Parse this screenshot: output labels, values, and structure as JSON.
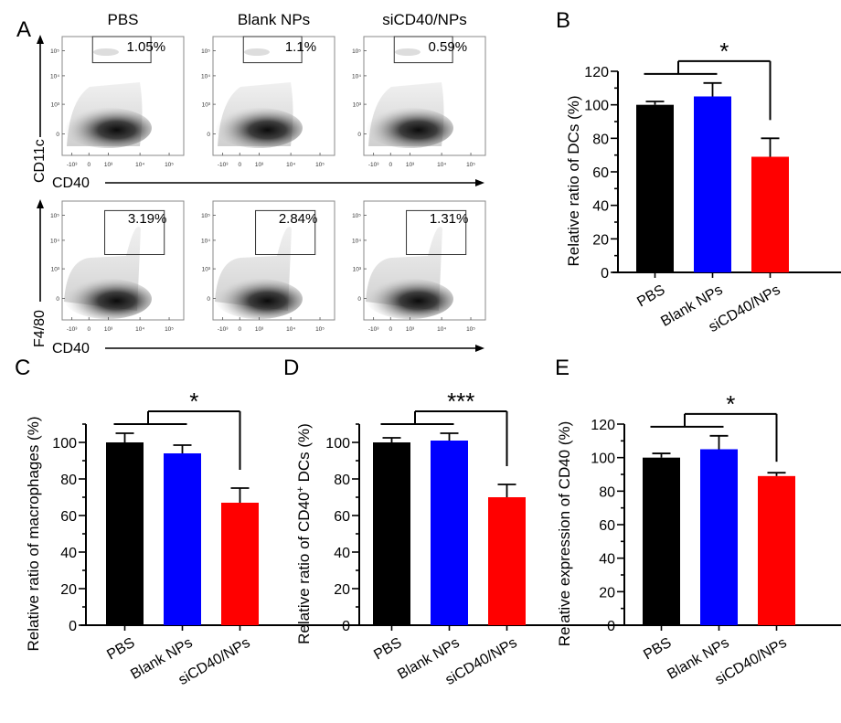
{
  "panel_labels": {
    "A": "A",
    "B": "B",
    "C": "C",
    "D": "D",
    "E": "E"
  },
  "flow": {
    "groups": [
      "PBS",
      "Blank NPs",
      "siCD40/NPs"
    ],
    "x_axis_label": "CD40",
    "x_ticks": [
      "-10³",
      "0",
      "10³",
      "10⁴",
      "10⁵"
    ],
    "y_ticks": [
      "0",
      "10³",
      "10⁴",
      "10⁵"
    ],
    "rows": [
      {
        "y_axis_label": "CD11c",
        "gate_percents": [
          "1.05%",
          "1.1%",
          "0.59%"
        ]
      },
      {
        "y_axis_label": "F4/80",
        "gate_percents": [
          "3.19%",
          "2.84%",
          "1.31%"
        ]
      }
    ]
  },
  "colors": {
    "PBS": "#000000",
    "Blank NPs": "#0000ff",
    "siCD40/NPs": "#ff0000"
  },
  "chart_data": [
    {
      "panel": "B",
      "type": "bar",
      "title": "",
      "xlabel": "",
      "ylabel": "Relative ratio of DCs (%)",
      "categories": [
        "PBS",
        "Blank NPs",
        "siCD40/NPs"
      ],
      "values": [
        100,
        105,
        69
      ],
      "errors": [
        2,
        8,
        11
      ],
      "ylim": [
        0,
        120
      ],
      "yticks": [
        0,
        20,
        40,
        60,
        80,
        100,
        120
      ],
      "significance": "*",
      "grid": false
    },
    {
      "panel": "C",
      "type": "bar",
      "title": "",
      "xlabel": "",
      "ylabel": "Relative ratio of macrophages (%)",
      "categories": [
        "PBS",
        "Blank NPs",
        "siCD40/NPs"
      ],
      "values": [
        100,
        94,
        67
      ],
      "errors": [
        5,
        4.5,
        8
      ],
      "ylim": [
        0,
        110
      ],
      "yticks": [
        0,
        20,
        40,
        60,
        80,
        100
      ],
      "significance": "*",
      "grid": false
    },
    {
      "panel": "D",
      "type": "bar",
      "title": "",
      "xlabel": "",
      "ylabel_parts": [
        "Relative ratio of CD40",
        "+",
        " DCs (%)"
      ],
      "ylabel": "Relative ratio of CD40+ DCs (%)",
      "categories": [
        "PBS",
        "Blank NPs",
        "siCD40/NPs"
      ],
      "values": [
        100,
        101,
        70
      ],
      "errors": [
        2.5,
        4,
        7
      ],
      "ylim": [
        0,
        110
      ],
      "yticks": [
        0,
        20,
        40,
        60,
        80,
        100
      ],
      "significance": "***",
      "grid": false
    },
    {
      "panel": "E",
      "type": "bar",
      "title": "",
      "xlabel": "",
      "ylabel": "Relative expression of CD40 (%)",
      "categories": [
        "PBS",
        "Blank NPs",
        "siCD40/NPs"
      ],
      "values": [
        100,
        105,
        89
      ],
      "errors": [
        2.5,
        8,
        2
      ],
      "ylim": [
        0,
        120
      ],
      "yticks": [
        0,
        20,
        40,
        60,
        80,
        100,
        120
      ],
      "significance": "*",
      "grid": false
    }
  ]
}
